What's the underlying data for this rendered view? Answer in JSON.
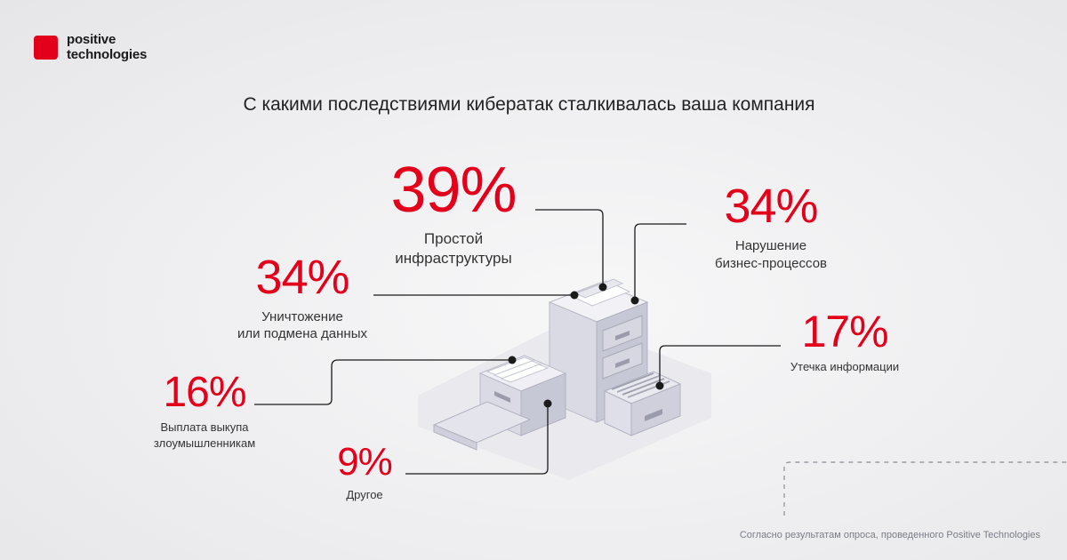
{
  "brand": {
    "line1": "positive",
    "line2": "technologies",
    "color": "#e3001b"
  },
  "title": "С какими последствиями кибератак сталкивалась ваша компания",
  "stats": [
    {
      "value": "39%",
      "label_lines": [
        "Простой",
        "инфраструктуры"
      ]
    },
    {
      "value": "34%",
      "label_lines": [
        "Нарушение",
        "бизнес-процессов"
      ]
    },
    {
      "value": "34%",
      "label_lines": [
        "Уничтожение",
        "или подмена данных"
      ]
    },
    {
      "value": "17%",
      "label_lines": [
        "Утечка информации"
      ]
    },
    {
      "value": "16%",
      "label_lines": [
        "Выплата выкупа",
        "злоумышленникам"
      ]
    },
    {
      "value": "9%",
      "label_lines": [
        "Другое"
      ]
    }
  ],
  "footnote": "Согласно результатам опроса, проведенного Positive Technologies",
  "icons": {
    "illustration": "file-cabinet-icon"
  }
}
